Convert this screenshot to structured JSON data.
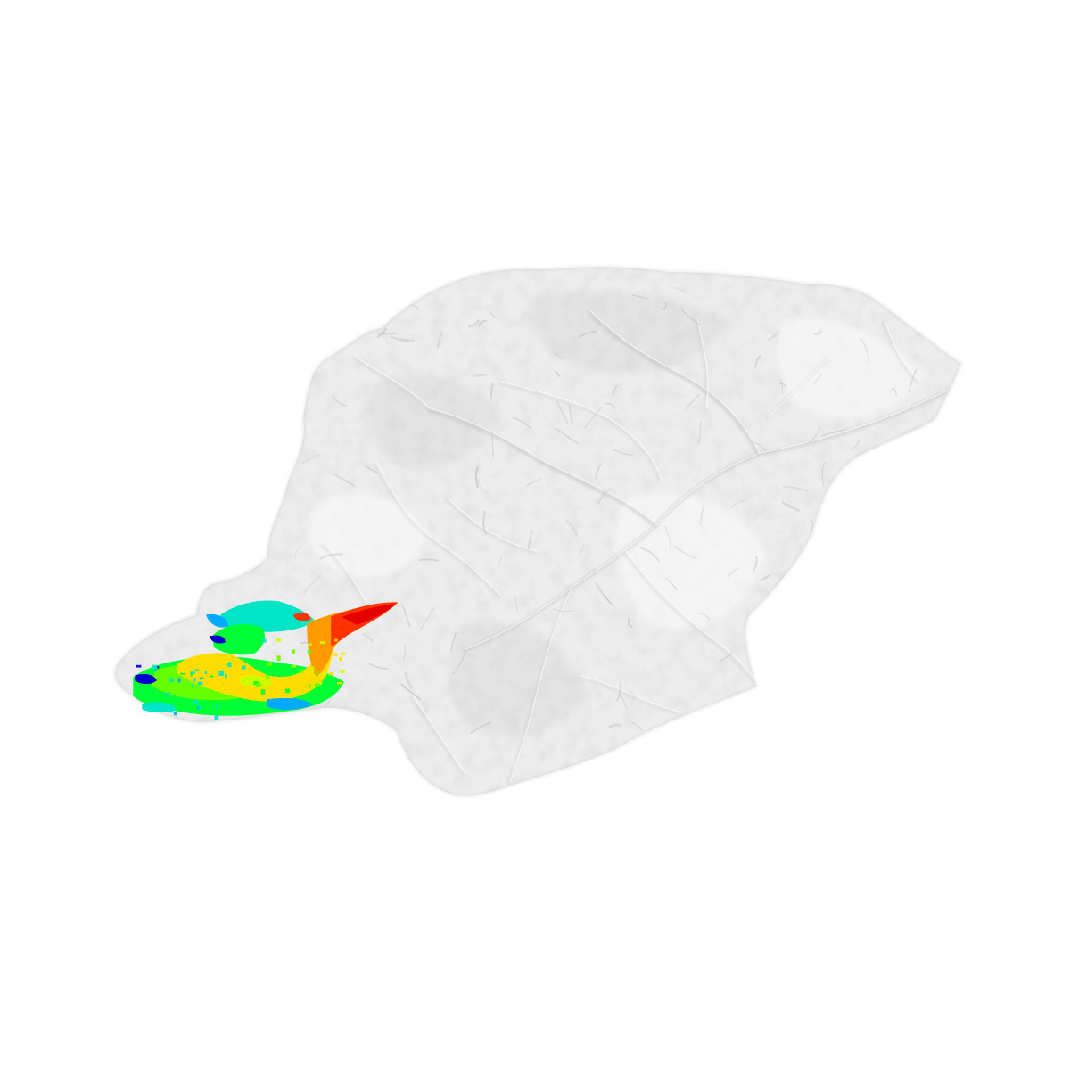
{
  "scene": {
    "background_color": "#ffffff",
    "terrain_color": "#ededed",
    "terrain_shadow_color": "#bdbdbd",
    "terrain_highlight_color": "#fafafa",
    "colormap": [
      "#0000cc",
      "#00aaff",
      "#00e5c8",
      "#00ff33",
      "#66ff00",
      "#ccff00",
      "#ffdd00",
      "#ff9900",
      "#ff3300",
      "#e60000"
    ],
    "overlay": "rainbow-scalar-field",
    "overlay_location": "lower-left"
  }
}
